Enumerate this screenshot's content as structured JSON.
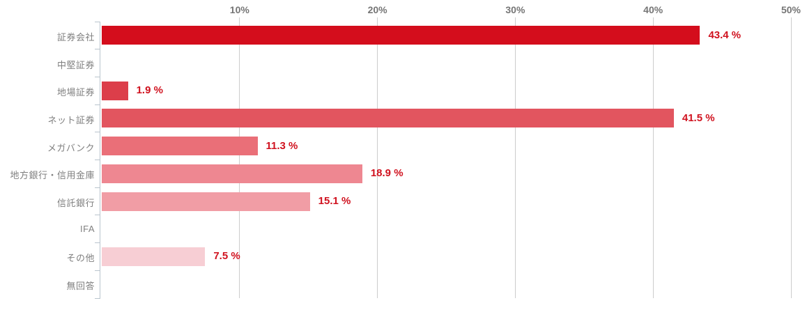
{
  "chart_data": {
    "type": "bar",
    "orientation": "horizontal",
    "title": "",
    "xlabel": "",
    "ylabel": "",
    "categories": [
      "証券会社",
      "中堅証券",
      "地場証券",
      "ネット証券",
      "メガバンク",
      "地方銀行・信用金庫",
      "信託銀行",
      "IFA",
      "その他",
      "無回答"
    ],
    "values": [
      43.4,
      null,
      1.9,
      41.5,
      11.3,
      18.9,
      15.1,
      null,
      7.5,
      null
    ],
    "value_labels": [
      "43.4 %",
      "",
      "1.9 %",
      "41.5 %",
      "11.3 %",
      "18.9 %",
      "15.1 %",
      "",
      "7.5 %",
      ""
    ],
    "bar_colors": [
      "#d40d1c",
      null,
      "#dc3e4a",
      "#e2555f",
      "#ea6f78",
      "#ee8791",
      "#f19da5",
      null,
      "#f7ced4",
      null
    ],
    "xlim": [
      0,
      50
    ],
    "x_ticks": [
      {
        "value": 10,
        "label": "10%"
      },
      {
        "value": 20,
        "label": "20%"
      },
      {
        "value": 30,
        "label": "30%"
      },
      {
        "value": 40,
        "label": "40%"
      },
      {
        "value": 50,
        "label": "50%"
      }
    ],
    "grid": true,
    "legend": "none"
  },
  "colors": {
    "value_label": "#d0121f",
    "category_label": "#7f7f7f",
    "axis_label": "#757575",
    "gridline": "#cccccc",
    "axis_line": "#b9c4cd",
    "background": "#ffffff"
  }
}
